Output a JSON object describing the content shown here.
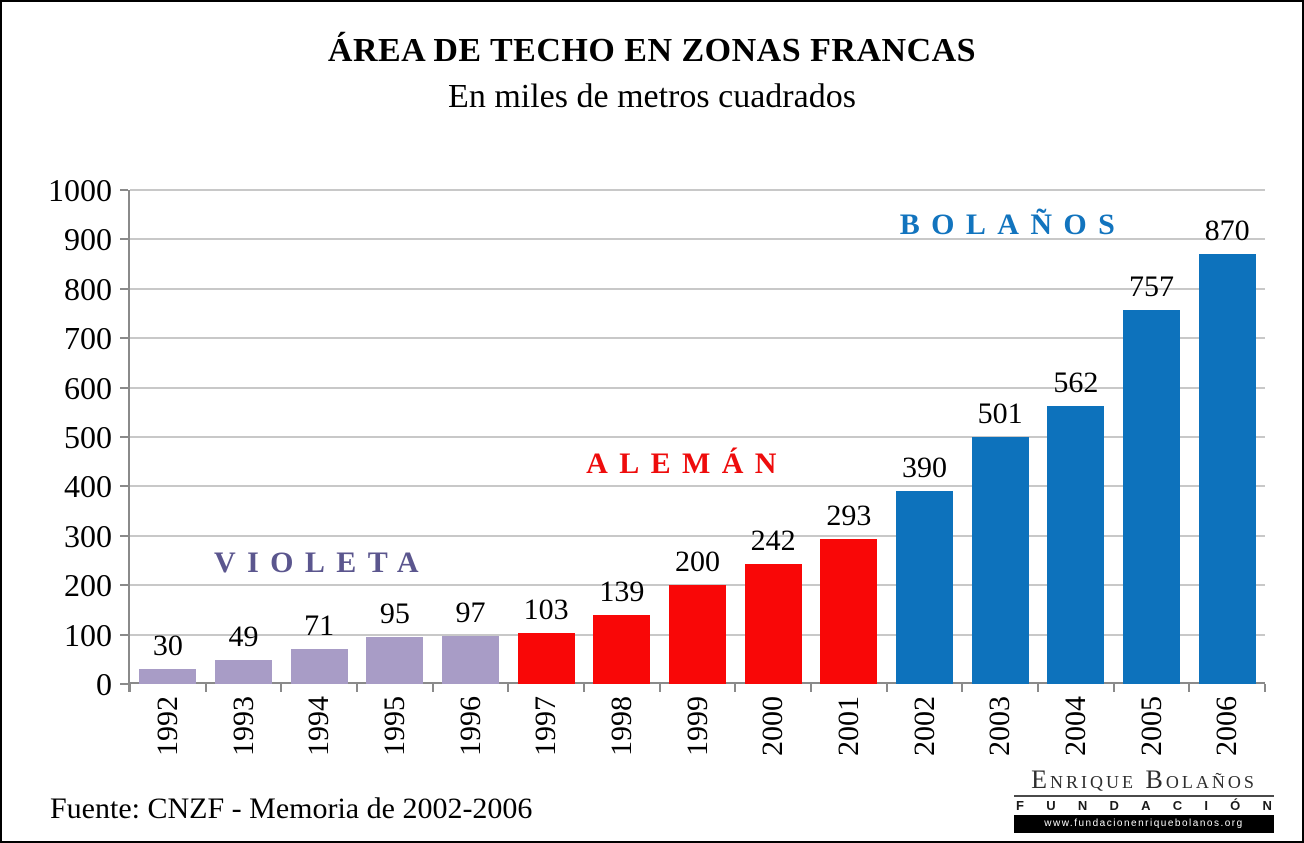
{
  "chart_data": {
    "type": "bar",
    "title": "ÁREA DE TECHO EN ZONAS FRANCAS",
    "subtitle": "En miles de metros cuadrados",
    "categories": [
      "1992",
      "1993",
      "1994",
      "1995",
      "1996",
      "1997",
      "1998",
      "1999",
      "2000",
      "2001",
      "2002",
      "2003",
      "2004",
      "2005",
      "2006"
    ],
    "values": [
      30,
      49,
      71,
      95,
      97,
      103,
      139,
      200,
      242,
      293,
      390,
      501,
      562,
      757,
      870
    ],
    "xlabel": "",
    "ylabel": "",
    "ylim": [
      0,
      1000
    ],
    "ytick_step": 100,
    "grid": true,
    "legend_position": "none",
    "eras": [
      {
        "id": "violeta",
        "label": "VIOLETA",
        "start": 0,
        "end": 4,
        "bar_color": "#A89CC6",
        "label_color": "#5B568E",
        "label_center": {
          "x": 192,
          "y": 373
        }
      },
      {
        "id": "aleman",
        "label": "ALEMÁN",
        "start": 5,
        "end": 9,
        "bar_color": "#F90707",
        "label_color": "#EE0C0C",
        "label_center": {
          "x": 557,
          "y": 274
        }
      },
      {
        "id": "bolanos",
        "label": "BOLAÑOS",
        "start": 10,
        "end": 14,
        "bar_color": "#0D72BC",
        "label_color": "#1274BE",
        "label_center": {
          "x": 883,
          "y": 35
        }
      }
    ]
  },
  "source_note": "Fuente: CNZF - Memoria de 2002-2006",
  "logo": {
    "name": "Enrique Bolaños",
    "division": "FUNDACIÓN",
    "website": "www.fundacionenriquebolanos.org"
  },
  "colors": {
    "grid": "#C8C8C8",
    "axis": "#8A8A8A"
  }
}
